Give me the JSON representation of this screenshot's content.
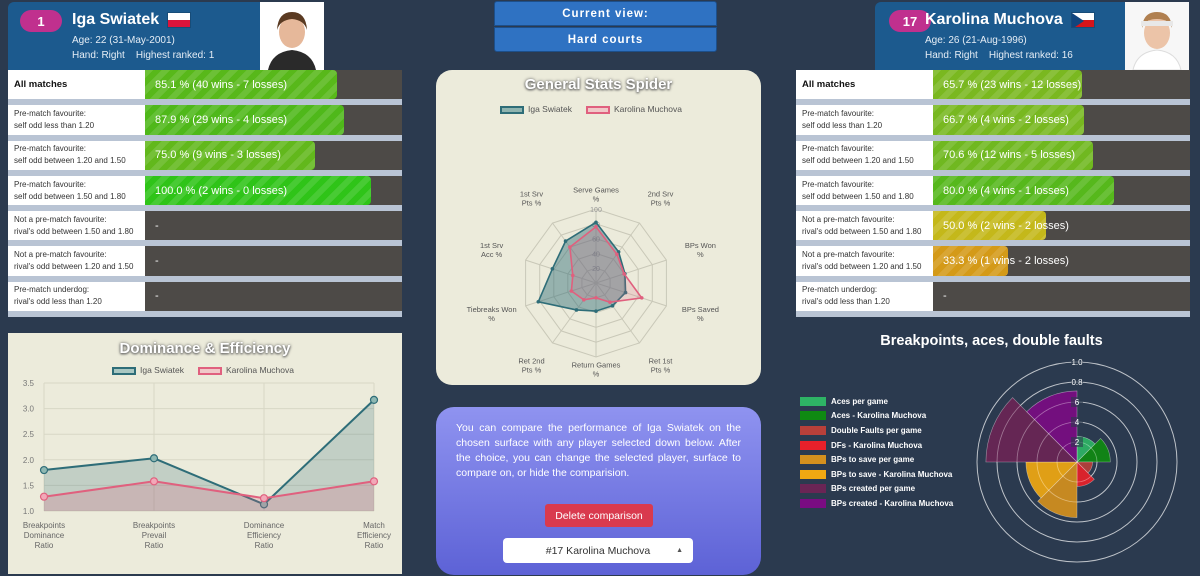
{
  "player1": {
    "rank": "1",
    "name": "Iga Swiatek",
    "age_line": "Age: 22 (31-May-2001)",
    "hand_line": "Hand: Right    Highest ranked: 1",
    "flag": "poland-flag",
    "color": "#2e6d78"
  },
  "player2": {
    "rank": "17",
    "name": "Karolina Muchova",
    "age_line": "Age: 26 (21-Aug-1996)",
    "hand_line": "Hand: Right    Highest ranked: 16",
    "flag": "czech-flag",
    "color": "#e0607e"
  },
  "current_view": {
    "title": "Current view:",
    "value": "Hard courts"
  },
  "stats": {
    "rows": [
      {
        "label1": "All matches",
        "label2": "",
        "p1": "85.1 % (40 wins - 7 losses)",
        "p1_pct": 85.1,
        "p1_color": "#58b81a",
        "p2": "65.7 % (23 wins - 12 losses)",
        "p2_pct": 65.7,
        "p2_color": "#7ab820"
      },
      {
        "label1": "Pre-match favourite:",
        "label2": "self odd less than 1.20",
        "p1": "87.9 % (29 wins - 4 losses)",
        "p1_pct": 87.9,
        "p1_color": "#4fb81a",
        "p2": "66.7 % (4 wins - 2 losses)",
        "p2_pct": 66.7,
        "p2_color": "#78b820"
      },
      {
        "label1": "Pre-match favourite:",
        "label2": "self odd between 1.20 and 1.50",
        "p1": "75.0 % (9 wins - 3 losses)",
        "p1_pct": 75.0,
        "p1_color": "#62b81c",
        "p2": "70.6 % (12 wins - 5 losses)",
        "p2_pct": 70.6,
        "p2_color": "#70b820"
      },
      {
        "label1": "Pre-match favourite:",
        "label2": "self odd between 1.50 and 1.80",
        "p1": "100.0 % (2 wins - 0 losses)",
        "p1_pct": 100.0,
        "p1_color": "#2fc418",
        "p2": "80.0 % (4 wins - 1 losses)",
        "p2_pct": 80.0,
        "p2_color": "#56b81c"
      },
      {
        "label1": "Not a pre-match favourite:",
        "label2": "rival's odd between 1.50 and 1.80",
        "p1": "-",
        "p1_pct": 0,
        "p1_color": "#4d4a47",
        "p2": "50.0 % (2 wins - 2 losses)",
        "p2_pct": 50.0,
        "p2_color": "#c4b81a"
      },
      {
        "label1": "Not a pre-match favourite:",
        "label2": "rival's odd between 1.20 and 1.50",
        "p1": "-",
        "p1_pct": 0,
        "p1_color": "#4d4a47",
        "p2": "33.3 % (1 wins - 2 losses)",
        "p2_pct": 33.3,
        "p2_color": "#d49a18"
      },
      {
        "label1": "Pre-match underdog:",
        "label2": "rival's odd less than 1.20",
        "p1": "-",
        "p1_pct": 0,
        "p1_color": "#4d4a47",
        "p2": "-",
        "p2_pct": 0,
        "p2_color": "#4d4a47"
      }
    ]
  },
  "spider": {
    "title": "General Stats Spider"
  },
  "dominance": {
    "title": "Dominance & Efficiency"
  },
  "compare": {
    "text": "You can compare the performance of Iga Swiatek on the chosen surface with any player selected down below. After the choice, you can change the selected player, surface to compare on, or hide the comparision.",
    "delete_label": "Delete comparison",
    "select_value": "#17 Karolina Muchova"
  },
  "breakpoints": {
    "title": "Breakpoints, aces, double faults"
  },
  "chart_data": [
    {
      "type": "radar",
      "title": "General Stats Spider",
      "axes": [
        "Serve Games %",
        "2nd Srv Pts %",
        "BPs Won %",
        "BPs Saved %",
        "Ret 1st Pts %",
        "Return Games %",
        "Ret 2nd Pts %",
        "Tiebreaks Won %",
        "1st Srv Acc %",
        "1st Srv Pts %"
      ],
      "tick_labels": [
        "20",
        "40",
        "60",
        "80",
        "100"
      ],
      "ylim": [
        0,
        100
      ],
      "series": [
        {
          "name": "Iga Swiatek",
          "values": [
            82,
            52,
            41,
            42,
            38,
            38,
            45,
            82,
            62,
            70
          ],
          "color": "#2e6d78"
        },
        {
          "name": "Karolina Muchova",
          "values": [
            76,
            48,
            40,
            65,
            32,
            20,
            28,
            35,
            33,
            60
          ],
          "color": "#e0607e"
        }
      ]
    },
    {
      "type": "line",
      "title": "Dominance & Efficiency",
      "categories": [
        "Breakpoints Dominance Ratio",
        "Breakpoints Prevail Ratio",
        "Dominance Efficiency Ratio",
        "Match Efficiency Ratio"
      ],
      "yticks": [
        "1.0",
        "1.5",
        "2.0",
        "2.5",
        "3.0",
        "3.5"
      ],
      "ylim": [
        1.0,
        3.5
      ],
      "series": [
        {
          "name": "Iga Swiatek",
          "values": [
            1.8,
            2.03,
            1.13,
            3.17
          ],
          "color": "#2e6d78"
        },
        {
          "name": "Karolina Muchova",
          "values": [
            1.28,
            1.58,
            1.25,
            1.58
          ],
          "color": "#e0607e"
        }
      ]
    },
    {
      "type": "polar-area",
      "title": "Breakpoints, aces, double faults",
      "ticks": [
        "2",
        "4",
        "6",
        "0.8",
        "1.0"
      ],
      "series": [
        {
          "name": "Aces per game",
          "value": 2.3,
          "color": "#2eb365"
        },
        {
          "name": "Aces - Karolina Muchova",
          "value": 3.0,
          "color": "#0f8a12"
        },
        {
          "name": "Double Faults per game",
          "value": 1.4,
          "color": "#b8403a"
        },
        {
          "name": "DFs - Karolina Muchova",
          "value": 2.2,
          "color": "#e8202a"
        },
        {
          "name": "BPs to save per game",
          "value": 5.0,
          "color": "#d4901e"
        },
        {
          "name": "BPs to save - Karolina Muchova",
          "value": 4.6,
          "color": "#f0a812"
        },
        {
          "name": "BPs created per game",
          "value": 8.2,
          "color": "#6a2555"
        },
        {
          "name": "BPs created - Karolina Muchova",
          "value": 6.4,
          "color": "#7a0c82"
        }
      ]
    }
  ]
}
